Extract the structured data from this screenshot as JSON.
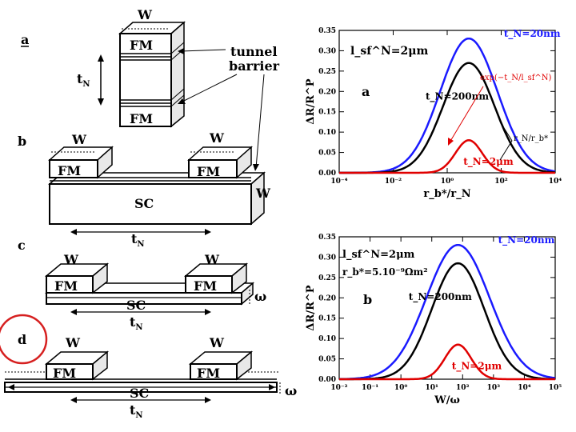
{
  "panel_labels": {
    "a": "a",
    "b": "b",
    "c": "c",
    "d": "d"
  },
  "schematic": {
    "W": "W",
    "FM": "FM",
    "SC": "SC",
    "tN_main": "t",
    "tN_sub": "N",
    "tunnel_barrier_line1": "tunnel",
    "tunnel_barrier_line2": "barrier",
    "omega": "ω"
  },
  "chart_data": [
    {
      "type": "line",
      "panel": "a",
      "ylabel": "ΔR/R^P",
      "xlabel": "r_b*/r_N",
      "x_scale": "log",
      "xlim_exp": [
        -4,
        4
      ],
      "x_ticks": [
        "10⁻⁴",
        "10⁻²",
        "10⁰",
        "10²",
        "10⁴"
      ],
      "ylim": [
        0,
        0.35
      ],
      "y_ticks": [
        "0.00",
        "0.05",
        "0.10",
        "0.15",
        "0.20",
        "0.25",
        "0.30",
        "0.35"
      ],
      "annotations": [
        "l_sf^N=2μm",
        "exp(−t_N/l_sf^N)",
        "r_N/r_b*"
      ],
      "series": [
        {
          "name": "t_N=20nm",
          "color": "#1a1aff",
          "peak": 0.33,
          "center_exp": 0.8,
          "width": 1.5
        },
        {
          "name": "t_N=200nm",
          "color": "#000000",
          "peak": 0.27,
          "center_exp": 0.8,
          "width": 1.35
        },
        {
          "name": "t_N=2μm",
          "color": "#e00000",
          "peak": 0.08,
          "center_exp": 0.8,
          "width": 0.7
        }
      ]
    },
    {
      "type": "line",
      "panel": "b",
      "ylabel": "ΔR/R^P",
      "xlabel": "W/ω",
      "x_scale": "log",
      "xlim_exp": [
        -2,
        5
      ],
      "x_ticks": [
        "10⁻²",
        "10⁻¹",
        "10⁰",
        "10¹",
        "10²",
        "10³",
        "10⁴",
        "10⁵"
      ],
      "ylim": [
        0,
        0.35
      ],
      "y_ticks": [
        "0.00",
        "0.05",
        "0.10",
        "0.15",
        "0.20",
        "0.25",
        "0.30",
        "0.35"
      ],
      "annotations": [
        "l_sf^N=2μm",
        "r_b*=5.10⁻⁹Ωm²"
      ],
      "series": [
        {
          "name": "t_N=20nm",
          "color": "#1a1aff",
          "peak": 0.33,
          "center_exp": 1.85,
          "width": 1.45
        },
        {
          "name": "t_N=200nm",
          "color": "#000000",
          "peak": 0.285,
          "center_exp": 1.85,
          "width": 1.2
        },
        {
          "name": "t_N=2μm",
          "color": "#e00000",
          "peak": 0.085,
          "center_exp": 1.85,
          "width": 0.6
        }
      ]
    }
  ]
}
